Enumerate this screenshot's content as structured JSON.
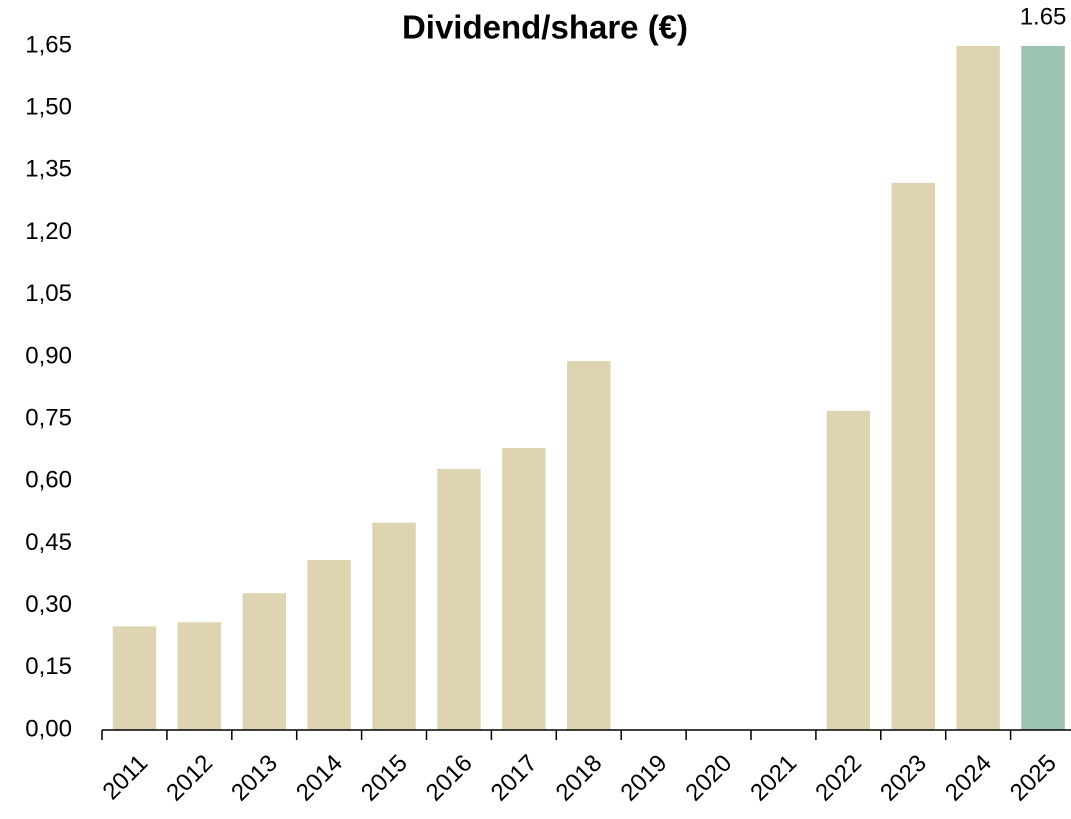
{
  "chart_data": {
    "type": "bar",
    "title": "Dividend/share (€)",
    "categories": [
      "2011",
      "2012",
      "2013",
      "2014",
      "2015",
      "2016",
      "2017",
      "2018",
      "2019",
      "2020",
      "2021",
      "2022",
      "2023",
      "2024",
      "2025"
    ],
    "values": [
      0.25,
      0.26,
      0.33,
      0.41,
      0.5,
      0.63,
      0.68,
      0.89,
      0,
      0,
      0,
      0.77,
      1.32,
      1.65,
      1.65
    ],
    "value_labels": [
      null,
      null,
      null,
      null,
      null,
      null,
      null,
      null,
      null,
      null,
      null,
      null,
      null,
      null,
      "1.65"
    ],
    "colors": [
      "#dfd4b2",
      "#dfd4b2",
      "#dfd4b2",
      "#dfd4b2",
      "#dfd4b2",
      "#dfd4b2",
      "#dfd4b2",
      "#dfd4b2",
      "#dfd4b2",
      "#dfd4b2",
      "#dfd4b2",
      "#dfd4b2",
      "#dfd4b2",
      "#dfd4b2",
      "#9cc3b0"
    ],
    "ylim": [
      0,
      1.65
    ],
    "yticks": [
      {
        "value": 0,
        "label": "0,00"
      },
      {
        "value": 0.15,
        "label": "0,15"
      },
      {
        "value": 0.3,
        "label": "0,30"
      },
      {
        "value": 0.45,
        "label": "0,45"
      },
      {
        "value": 0.6,
        "label": "0,60"
      },
      {
        "value": 0.75,
        "label": "0,75"
      },
      {
        "value": 0.9,
        "label": "0,90"
      },
      {
        "value": 1.05,
        "label": "1,05"
      },
      {
        "value": 1.2,
        "label": "1,20"
      },
      {
        "value": 1.35,
        "label": "1,35"
      },
      {
        "value": 1.5,
        "label": "1,50"
      },
      {
        "value": 1.65,
        "label": "1,65"
      }
    ],
    "grid": false
  }
}
